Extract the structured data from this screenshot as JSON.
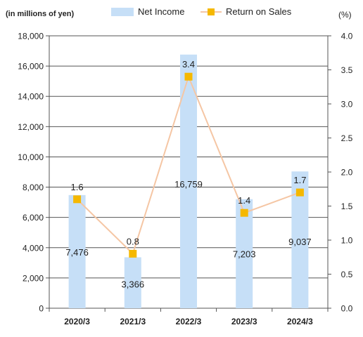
{
  "chart_data": {
    "type": "bar+line",
    "categories": [
      "2020/3",
      "2021/3",
      "2022/3",
      "2023/3",
      "2024/3"
    ],
    "series": [
      {
        "name": "Net Income",
        "type": "bar",
        "axis": "left",
        "values": [
          7476,
          3366,
          16759,
          7203,
          9037
        ],
        "labels": [
          "7,476",
          "3,366",
          "16,759",
          "7,203",
          "9,037"
        ],
        "color": "#c6dff7"
      },
      {
        "name": "Return on Sales",
        "type": "line",
        "axis": "right",
        "values": [
          1.6,
          0.8,
          3.4,
          1.4,
          1.7
        ],
        "labels": [
          "1.6",
          "0.8",
          "3.4",
          "1.4",
          "1.7"
        ],
        "color": "#f5c6a4",
        "marker_color": "#f5b800"
      }
    ],
    "y_left": {
      "unit_label": "(in millions of yen)",
      "ylim": [
        0,
        18000
      ],
      "ticks": [
        0,
        2000,
        4000,
        6000,
        8000,
        10000,
        12000,
        14000,
        16000,
        18000
      ],
      "tick_labels": [
        "0",
        "2,000",
        "4,000",
        "6,000",
        "8,000",
        "10,000",
        "12,000",
        "14,000",
        "16,000",
        "18,000"
      ]
    },
    "y_right": {
      "unit_label": "(%)",
      "ylim": [
        0,
        4.0
      ],
      "ticks": [
        0,
        0.5,
        1.0,
        1.5,
        2.0,
        2.5,
        3.0,
        3.5,
        4.0
      ],
      "tick_labels": [
        "0.0",
        "0.5",
        "1.0",
        "1.5",
        "2.0",
        "2.5",
        "3.0",
        "3.5",
        "4.0"
      ]
    },
    "grid": true,
    "legend": "top-center"
  }
}
